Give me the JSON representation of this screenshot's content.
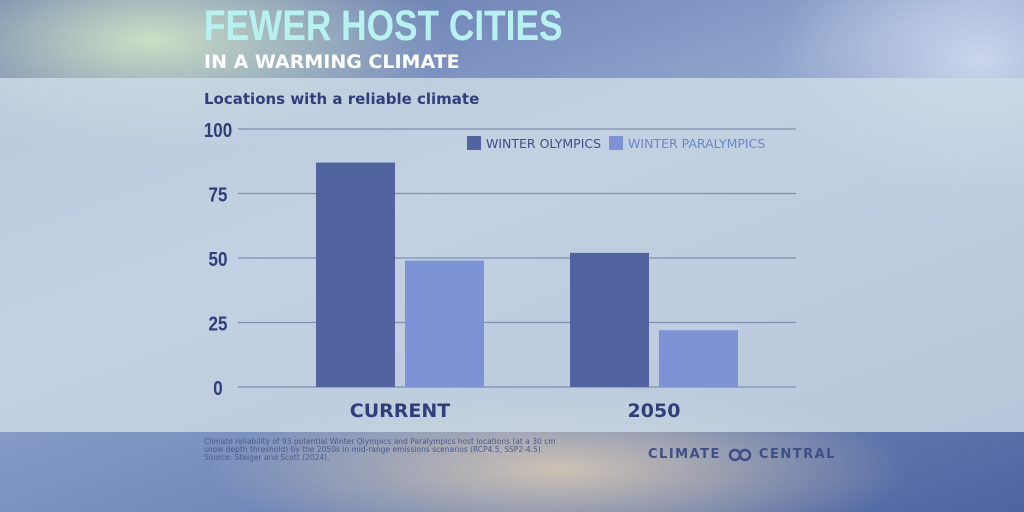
{
  "header": {
    "title": "FEWER HOST CITIES",
    "subtitle": "IN A WARMING CLIMATE"
  },
  "chart_data": {
    "type": "bar",
    "title": "Locations with a reliable climate",
    "categories": [
      "CURRENT",
      "2050"
    ],
    "series": [
      {
        "name": "WINTER OLYMPICS",
        "values": [
          87,
          52
        ],
        "color": "#51649f"
      },
      {
        "name": "WINTER PARALYMPICS",
        "values": [
          49,
          22
        ],
        "color": "#7e93d6"
      }
    ],
    "ylim": [
      0,
      100
    ],
    "yticks": [
      0,
      25,
      50,
      75,
      100
    ],
    "grid": true,
    "legend": "top-right"
  },
  "footnote": {
    "line1": "Climate reliability of 93 potential Winter Olympics and Paralympics host locations (at a 30 cm",
    "line2": "snow depth threshold) by the 2050s in mid-range emissions scenarios (RCP4.5, SSP2-4.5).",
    "line3": "Source: Steiger and Scott (2024)."
  },
  "logo": {
    "left": "CLIMATE",
    "right": "CENTRAL",
    "icon": "linked-rings-icon"
  }
}
